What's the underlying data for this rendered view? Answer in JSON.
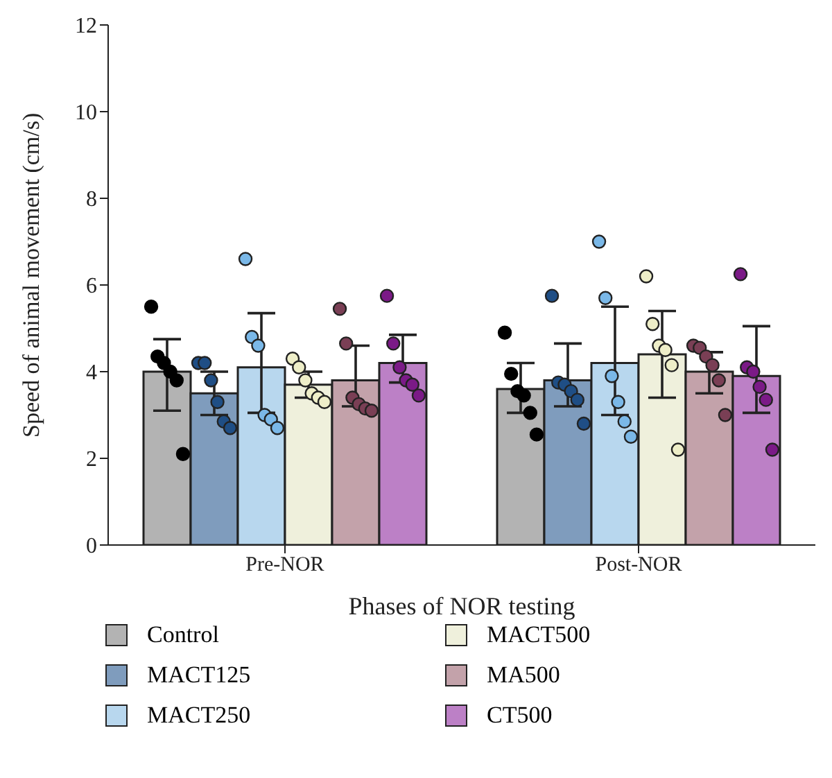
{
  "chart_data": {
    "type": "bar",
    "xlabel": "Phases of NOR testing",
    "ylabel": "Speed of animal movement (cm/s)",
    "categories": [
      "Pre-NOR",
      "Post-NOR"
    ],
    "ylim": [
      0,
      12
    ],
    "yticks": [
      0,
      2,
      4,
      6,
      8,
      10,
      12
    ],
    "grid": false,
    "legend": "bottom",
    "series": [
      {
        "name": "Control",
        "color": "#b3b3b3",
        "values": [
          4.0,
          3.6
        ],
        "errors": [
          [
            3.1,
            4.75
          ],
          [
            3.05,
            4.2
          ]
        ]
      },
      {
        "name": "MACT125",
        "color": "#7f9cbd",
        "values": [
          3.5,
          3.8
        ],
        "errors": [
          [
            3.0,
            4.0
          ],
          [
            3.2,
            4.65
          ]
        ]
      },
      {
        "name": "MACT250",
        "color": "#b8d7ee",
        "values": [
          4.1,
          4.2
        ],
        "errors": [
          [
            3.05,
            5.35
          ],
          [
            3.0,
            5.5
          ]
        ]
      },
      {
        "name": "MACT500",
        "color": "#eff0dc",
        "values": [
          3.7,
          4.4
        ],
        "errors": [
          [
            3.4,
            4.0
          ],
          [
            3.4,
            5.4
          ]
        ]
      },
      {
        "name": "MA500",
        "color": "#c3a2aa",
        "values": [
          3.8,
          4.0
        ],
        "errors": [
          [
            3.2,
            4.6
          ],
          [
            3.5,
            4.45
          ]
        ]
      },
      {
        "name": "CT500",
        "color": "#bc80c6",
        "values": [
          4.2,
          3.9
        ],
        "errors": [
          [
            3.75,
            4.85
          ],
          [
            3.05,
            5.05
          ]
        ]
      },
      {
        "type": "scatter",
        "color": "#000000",
        "x": [
          "Pre-NOR",
          "Pre-NOR",
          "Pre-NOR",
          "Pre-NOR",
          "Pre-NOR",
          "Pre-NOR",
          "Post-NOR",
          "Post-NOR",
          "Post-NOR",
          "Post-NOR",
          "Post-NOR",
          "Post-NOR"
        ],
        "values": [
          5.5,
          4.35,
          4.2,
          4.0,
          3.8,
          2.1,
          4.9,
          3.95,
          3.55,
          3.45,
          3.05,
          2.55
        ]
      },
      {
        "type": "scatter",
        "color": "#1f4e85",
        "x": [
          "Pre-NOR",
          "Pre-NOR",
          "Pre-NOR",
          "Pre-NOR",
          "Pre-NOR",
          "Pre-NOR",
          "Post-NOR",
          "Post-NOR",
          "Post-NOR",
          "Post-NOR",
          "Post-NOR",
          "Post-NOR"
        ],
        "values": [
          4.2,
          4.2,
          3.8,
          3.3,
          2.85,
          2.7,
          5.75,
          3.75,
          3.7,
          3.55,
          3.35,
          2.8
        ]
      },
      {
        "type": "scatter",
        "color": "#7ab8e8",
        "x": [
          "Pre-NOR",
          "Pre-NOR",
          "Pre-NOR",
          "Pre-NOR",
          "Pre-NOR",
          "Pre-NOR",
          "Post-NOR",
          "Post-NOR",
          "Post-NOR",
          "Post-NOR",
          "Post-NOR",
          "Post-NOR"
        ],
        "values": [
          6.6,
          4.8,
          4.6,
          3.0,
          2.9,
          2.7,
          7.0,
          5.7,
          3.9,
          3.3,
          2.85,
          2.5
        ]
      },
      {
        "type": "scatter",
        "color": "#eeeec8",
        "x": [
          "Pre-NOR",
          "Pre-NOR",
          "Pre-NOR",
          "Pre-NOR",
          "Pre-NOR",
          "Pre-NOR",
          "Post-NOR",
          "Post-NOR",
          "Post-NOR",
          "Post-NOR",
          "Post-NOR",
          "Post-NOR"
        ],
        "values": [
          4.3,
          4.1,
          3.8,
          3.5,
          3.4,
          3.3,
          6.2,
          5.1,
          4.6,
          4.5,
          4.15,
          2.2
        ]
      },
      {
        "type": "scatter",
        "color": "#7a3f55",
        "x": [
          "Pre-NOR",
          "Pre-NOR",
          "Pre-NOR",
          "Pre-NOR",
          "Pre-NOR",
          "Pre-NOR",
          "Post-NOR",
          "Post-NOR",
          "Post-NOR",
          "Post-NOR",
          "Post-NOR",
          "Post-NOR"
        ],
        "values": [
          5.45,
          4.65,
          3.4,
          3.25,
          3.15,
          3.1,
          4.6,
          4.55,
          4.35,
          4.15,
          3.8,
          3.0
        ]
      },
      {
        "type": "scatter",
        "color": "#7b1a87",
        "x": [
          "Pre-NOR",
          "Pre-NOR",
          "Pre-NOR",
          "Pre-NOR",
          "Pre-NOR",
          "Pre-NOR",
          "Post-NOR",
          "Post-NOR",
          "Post-NOR",
          "Post-NOR",
          "Post-NOR",
          "Post-NOR"
        ],
        "values": [
          5.75,
          4.65,
          4.1,
          3.8,
          3.7,
          3.45,
          6.25,
          4.1,
          4.0,
          3.65,
          3.35,
          2.2
        ]
      }
    ]
  }
}
